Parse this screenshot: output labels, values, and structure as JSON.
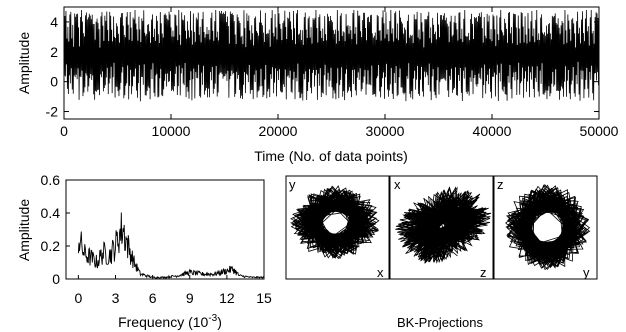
{
  "chart_data": [
    {
      "type": "line",
      "title": "",
      "xlabel": "Time (No. of data points)",
      "ylabel": "Amplitude",
      "xlim": [
        0,
        50000
      ],
      "ylim": [
        -2.5,
        5
      ],
      "xticks": [
        "0",
        "10000",
        "20000",
        "30000",
        "40000",
        "50000"
      ],
      "yticks": [
        "-2",
        "0",
        "2",
        "4"
      ],
      "series": [
        {
          "description": "chaotic time series, values oscillate between about -1.8 and 4.8 over 50000 points"
        }
      ],
      "grid": false
    },
    {
      "type": "line",
      "title": "",
      "xlabel": "Frequency (10",
      "xlabel_exponent": "-3",
      "xlabel_close": ")",
      "ylabel": "Amplitude",
      "xlim": [
        -1,
        15
      ],
      "ylim": [
        0,
        0.6
      ],
      "xticks": [
        "0",
        "3",
        "6",
        "9",
        "12",
        "15"
      ],
      "yticks": [
        "0",
        "0.2",
        "0.4",
        "0.6"
      ],
      "x": [
        0,
        0.5,
        1,
        1.5,
        2,
        2.5,
        3,
        3.3,
        3.6,
        4,
        4.5,
        5,
        6,
        7,
        8,
        9,
        10,
        11,
        12,
        12.5,
        13,
        14,
        15
      ],
      "y": [
        0.25,
        0.15,
        0.13,
        0.1,
        0.16,
        0.14,
        0.2,
        0.27,
        0.31,
        0.2,
        0.1,
        0.03,
        0.01,
        0.01,
        0.02,
        0.04,
        0.03,
        0.03,
        0.05,
        0.06,
        0.02,
        0.01,
        0.01
      ],
      "grid": false
    },
    {
      "type": "scatter",
      "title": "BK-Projections",
      "panels": [
        {
          "corner_label": "y",
          "axis_label": "x"
        },
        {
          "corner_label": "x",
          "axis_label": "z"
        },
        {
          "corner_label": "z",
          "axis_label": "y"
        }
      ]
    }
  ]
}
